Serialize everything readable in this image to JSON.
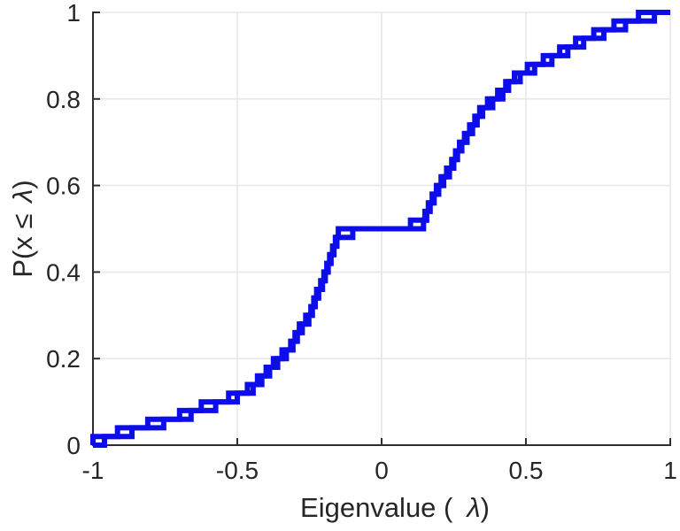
{
  "chart_data": {
    "type": "line",
    "subtype": "ecdf-staircase",
    "title": "",
    "xlabel": {
      "pre": "Eigenvalue (",
      "sym": "λ",
      "post": ")"
    },
    "ylabel": {
      "pre": "P(x ≤ ",
      "sym": "λ",
      "post": ")"
    },
    "xlim": [
      -1,
      1
    ],
    "ylim": [
      0,
      1
    ],
    "x_ticks": [
      {
        "value": -1,
        "label": "-1"
      },
      {
        "value": -0.5,
        "label": "-0.5"
      },
      {
        "value": 0,
        "label": "0"
      },
      {
        "value": 0.5,
        "label": "0.5"
      },
      {
        "value": 1,
        "label": "1"
      }
    ],
    "y_ticks": [
      {
        "value": 0,
        "label": "0"
      },
      {
        "value": 0.2,
        "label": "0.2"
      },
      {
        "value": 0.4,
        "label": "0.4"
      },
      {
        "value": 0.6,
        "label": "0.6"
      },
      {
        "value": 0.8,
        "label": "0.8"
      },
      {
        "value": 1,
        "label": "1"
      }
    ],
    "grid": true,
    "legend": null,
    "colors": {
      "line": "#0d0deb",
      "grid": "#e8e8e8",
      "axis": "#2e2e2e",
      "text": "#262626",
      "background": "#ffffff"
    },
    "line_width": 6,
    "series": [
      {
        "name": "ecdf-series-1",
        "step_height": 0.02,
        "eigenvalues": [
          -1.0,
          -0.915,
          -0.81,
          -0.7,
          -0.625,
          -0.53,
          -0.465,
          -0.43,
          -0.4,
          -0.375,
          -0.345,
          -0.315,
          -0.3,
          -0.285,
          -0.263,
          -0.245,
          -0.235,
          -0.225,
          -0.211,
          -0.2,
          -0.19,
          -0.18,
          -0.17,
          -0.16,
          -0.15,
          0.1,
          0.15,
          0.162,
          0.175,
          0.19,
          0.206,
          0.225,
          0.243,
          0.256,
          0.27,
          0.287,
          0.305,
          0.323,
          0.34,
          0.367,
          0.402,
          0.43,
          0.46,
          0.505,
          0.56,
          0.617,
          0.672,
          0.735,
          0.805,
          0.89
        ]
      },
      {
        "name": "ecdf-series-2",
        "step_height": 0.02,
        "eigenvalues": [
          -0.96,
          -0.865,
          -0.755,
          -0.66,
          -0.575,
          -0.5,
          -0.445,
          -0.415,
          -0.388,
          -0.36,
          -0.33,
          -0.307,
          -0.292,
          -0.275,
          -0.252,
          -0.24,
          -0.23,
          -0.218,
          -0.205,
          -0.195,
          -0.185,
          -0.175,
          -0.165,
          -0.155,
          -0.1,
          0.145,
          0.156,
          0.168,
          0.182,
          0.198,
          0.215,
          0.235,
          0.25,
          0.263,
          0.278,
          0.296,
          0.315,
          0.331,
          0.35,
          0.385,
          0.42,
          0.44,
          0.48,
          0.53,
          0.59,
          0.645,
          0.7,
          0.77,
          0.845,
          0.945
        ]
      }
    ],
    "annotations": {
      "plateau_probability": 0.5,
      "plateau_lambda_range": [
        -0.1,
        0.1
      ]
    }
  }
}
